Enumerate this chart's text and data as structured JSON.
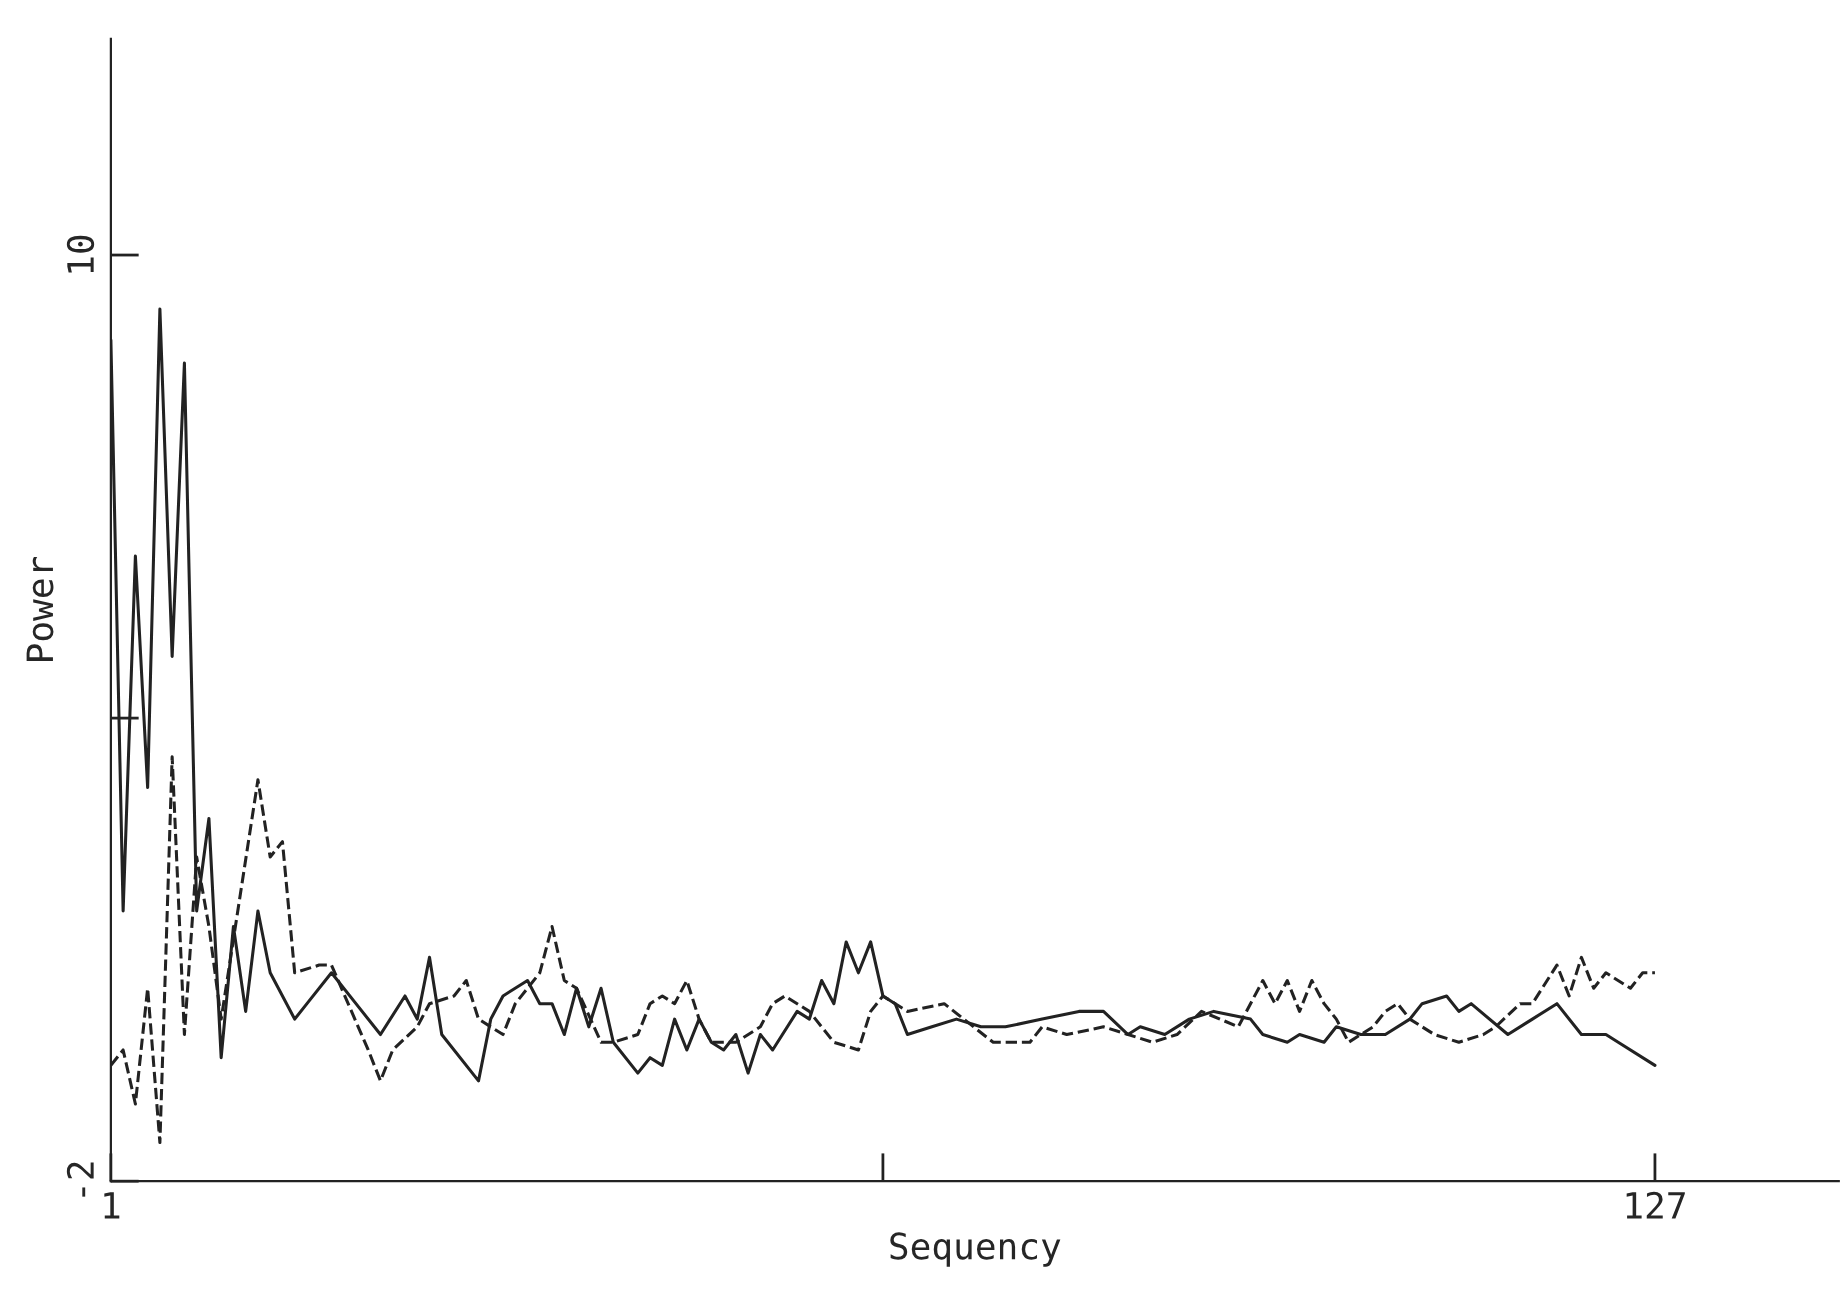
{
  "chart_data": {
    "type": "line",
    "xlabel": "Sequency",
    "ylabel": "Power",
    "xlim": [
      1,
      142
    ],
    "ylim": [
      -2,
      12.8
    ],
    "xticks": [
      1,
      {
        "value": 64,
        "label": null
      },
      127
    ],
    "yticks": [
      -2,
      {
        "value": 4,
        "label": null
      },
      10
    ],
    "grid": false,
    "legend": false,
    "marker": "none",
    "series": [
      {
        "color": "#222222",
        "line_style": "solid",
        "x": [
          1,
          2,
          3,
          4,
          5,
          6,
          7,
          8,
          9,
          10,
          11,
          12,
          13,
          14,
          16,
          17,
          19,
          21,
          23,
          25,
          26,
          27,
          28,
          31,
          32,
          33,
          35,
          36,
          37,
          38,
          39,
          40,
          41,
          42,
          44,
          45,
          46,
          47,
          48,
          49,
          50,
          51,
          52,
          53,
          54,
          55,
          57,
          58,
          59,
          60,
          61,
          62,
          63,
          64,
          65,
          66,
          68,
          70,
          72,
          74,
          77,
          80,
          82,
          84,
          85,
          87,
          89,
          91,
          94,
          95,
          97,
          98,
          100,
          101,
          103,
          105,
          107,
          108,
          110,
          111,
          112,
          115,
          117,
          119,
          121,
          123,
          124,
          127
        ],
        "values": [
          8.9,
          1.5,
          6.1,
          3.1,
          9.3,
          4.8,
          8.6,
          1.5,
          2.7,
          -0.4,
          1.3,
          0.2,
          1.5,
          0.7,
          0.1,
          0.3,
          0.7,
          0.3,
          -0.1,
          0.4,
          0.1,
          0.9,
          -0.1,
          -0.7,
          0.1,
          0.4,
          0.6,
          0.3,
          0.3,
          -0.1,
          0.5,
          0.0,
          0.5,
          -0.2,
          -0.6,
          -0.4,
          -0.5,
          0.1,
          -0.3,
          0.1,
          -0.2,
          -0.3,
          -0.1,
          -0.6,
          -0.1,
          -0.3,
          0.2,
          0.1,
          0.6,
          0.3,
          1.1,
          0.7,
          1.1,
          0.4,
          0.3,
          -0.1,
          0.0,
          0.1,
          0.0,
          0.0,
          0.1,
          0.2,
          0.2,
          -0.1,
          0.0,
          -0.1,
          0.1,
          0.2,
          0.1,
          -0.1,
          -0.2,
          -0.1,
          -0.2,
          0.0,
          -0.1,
          -0.1,
          0.1,
          0.3,
          0.4,
          0.2,
          0.3,
          -0.1,
          0.1,
          0.3,
          -0.1,
          -0.1,
          -0.2,
          -0.5
        ]
      },
      {
        "color": "#222222",
        "line_style": "dashed",
        "x": [
          1,
          2,
          3,
          4,
          5,
          6,
          7,
          8,
          9,
          10,
          13,
          14,
          15,
          16,
          18,
          19,
          22,
          23,
          24,
          26,
          27,
          29,
          30,
          31,
          33,
          34,
          36,
          37,
          38,
          39,
          41,
          42,
          44,
          45,
          46,
          47,
          48,
          49,
          50,
          52,
          54,
          55,
          56,
          58,
          60,
          62,
          63,
          64,
          66,
          69,
          73,
          76,
          77,
          79,
          82,
          86,
          88,
          90,
          93,
          95,
          96,
          97,
          98,
          99,
          100,
          101,
          102,
          104,
          105,
          106,
          107,
          109,
          111,
          113,
          114,
          116,
          117,
          119,
          120,
          121,
          122,
          123,
          125,
          126,
          127
        ],
        "values": [
          -0.5,
          -0.3,
          -1.0,
          0.5,
          -1.5,
          3.5,
          -0.1,
          2.2,
          1.3,
          0.1,
          3.2,
          2.2,
          2.4,
          0.7,
          0.8,
          0.8,
          -0.3,
          -0.7,
          -0.3,
          0.0,
          0.3,
          0.4,
          0.6,
          0.1,
          -0.1,
          0.3,
          0.7,
          1.3,
          0.6,
          0.5,
          -0.2,
          -0.2,
          -0.1,
          0.3,
          0.4,
          0.3,
          0.6,
          0.1,
          -0.2,
          -0.2,
          0.0,
          0.3,
          0.4,
          0.2,
          -0.2,
          -0.3,
          0.2,
          0.4,
          0.2,
          0.3,
          -0.2,
          -0.2,
          0.0,
          -0.1,
          0.0,
          -0.2,
          -0.1,
          0.2,
          0.0,
          0.6,
          0.3,
          0.6,
          0.2,
          0.6,
          0.3,
          0.1,
          -0.2,
          0.0,
          0.2,
          0.3,
          0.1,
          -0.1,
          -0.2,
          -0.1,
          0.0,
          0.3,
          0.3,
          0.8,
          0.4,
          0.9,
          0.5,
          0.7,
          0.5,
          0.7,
          0.7
        ]
      }
    ]
  }
}
